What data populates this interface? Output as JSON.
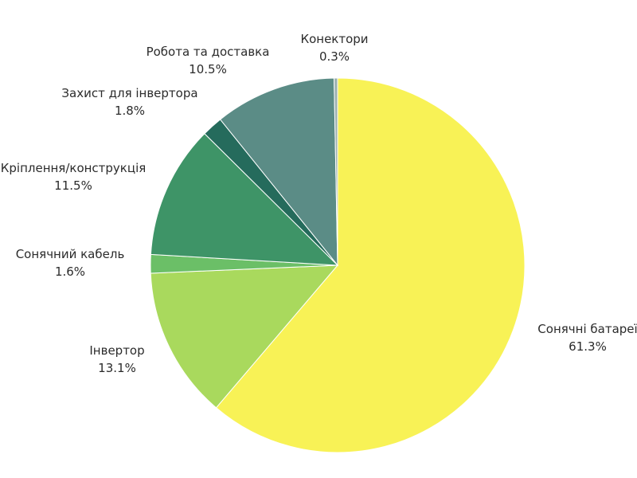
{
  "chart_data": {
    "type": "pie",
    "start_angle_deg": 0,
    "direction": "clockwise",
    "slices": [
      {
        "label": "Сонячні батареї",
        "value": 61.3,
        "display": "61.3%",
        "color": "#f8f256"
      },
      {
        "label": "Інвертор",
        "value": 13.1,
        "display": "13.1%",
        "color": "#a9d95d"
      },
      {
        "label": "Сонячний кабель",
        "value": 1.6,
        "display": "1.6%",
        "color": "#6bbf67"
      },
      {
        "label": "Кріплення/конструкція",
        "value": 11.5,
        "display": "11.5%",
        "color": "#3e9467"
      },
      {
        "label": "Захист для інвертора",
        "value": 1.8,
        "display": "1.8%",
        "color": "#256b5c"
      },
      {
        "label": "Робота та доставка",
        "value": 10.5,
        "display": "10.5%",
        "color": "#5b8c86"
      },
      {
        "label": "Конектори",
        "value": 0.3,
        "display": "0.3%",
        "color": "#9bb0b0"
      }
    ]
  }
}
